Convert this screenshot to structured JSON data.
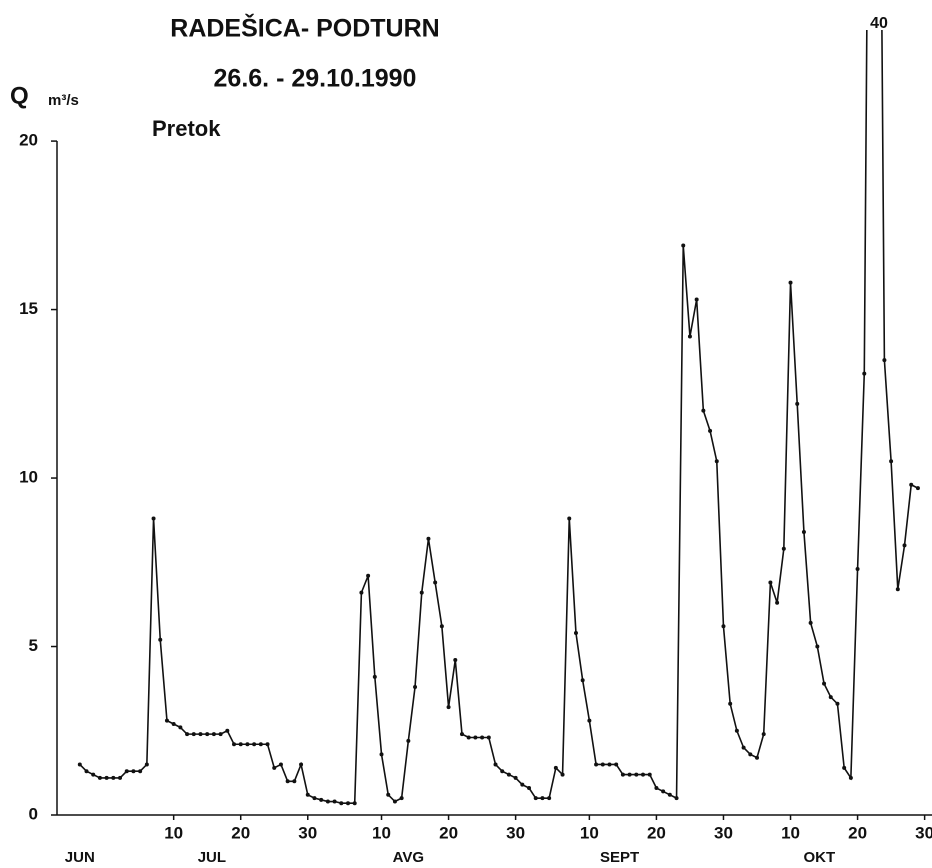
{
  "chart_data": {
    "type": "line",
    "title": "RADEŠICA- PODTURN",
    "subtitle": "26.6. - 29.10.1990",
    "y_label": "Q",
    "y_unit": "m³/s",
    "series_label": "Pretok",
    "annotation": "40",
    "x": [
      -5,
      -4,
      -3,
      -2,
      -1,
      0,
      1,
      2,
      3,
      4,
      5,
      6,
      7,
      8,
      9,
      10,
      11,
      12,
      13,
      14,
      15,
      16,
      17,
      18,
      19,
      20,
      21,
      22,
      23,
      24,
      25,
      26,
      27,
      28,
      29,
      30,
      31,
      32,
      33,
      34,
      35,
      36,
      37,
      38,
      39,
      40,
      41,
      42,
      43,
      44,
      45,
      46,
      47,
      48,
      49,
      50,
      51,
      52,
      53,
      54,
      55,
      56,
      57,
      58,
      59,
      60,
      61,
      62,
      63,
      64,
      65,
      66,
      67,
      68,
      69,
      70,
      71,
      72,
      73,
      74,
      75,
      76,
      77,
      78,
      79,
      80,
      81,
      82,
      83,
      84,
      85,
      86,
      87,
      88,
      89,
      90,
      91,
      92,
      93,
      94,
      95,
      96,
      97,
      98,
      99,
      100,
      101,
      102,
      103,
      104,
      105,
      106,
      107,
      108,
      109,
      110,
      111,
      112,
      113,
      114,
      115,
      116,
      117,
      118,
      119,
      120
    ],
    "series": [
      {
        "name": "Pretok",
        "color": "#111111",
        "values": [
          1.5,
          1.3,
          1.2,
          1.1,
          1.1,
          1.1,
          1.1,
          1.3,
          1.3,
          1.3,
          1.5,
          8.8,
          5.2,
          2.8,
          2.7,
          2.6,
          2.4,
          2.4,
          2.4,
          2.4,
          2.4,
          2.4,
          2.5,
          2.1,
          2.1,
          2.1,
          2.1,
          2.1,
          2.1,
          1.4,
          1.5,
          1.0,
          1.0,
          1.5,
          0.6,
          0.5,
          0.45,
          0.4,
          0.4,
          0.35,
          0.35,
          0.35,
          6.6,
          7.1,
          4.1,
          1.8,
          0.6,
          0.4,
          0.5,
          2.2,
          3.8,
          6.6,
          8.2,
          6.9,
          5.6,
          3.2,
          4.6,
          2.4,
          2.3,
          2.3,
          2.3,
          2.3,
          1.5,
          1.3,
          1.2,
          1.1,
          0.9,
          0.8,
          0.5,
          0.5,
          0.5,
          1.4,
          1.2,
          8.8,
          5.4,
          4.0,
          2.8,
          1.5,
          1.5,
          1.5,
          1.5,
          1.2,
          1.2,
          1.2,
          1.2,
          1.2,
          0.8,
          0.7,
          0.6,
          0.5,
          16.9,
          14.2,
          15.3,
          12.0,
          11.4,
          10.5,
          5.6,
          3.3,
          2.5,
          2.0,
          1.8,
          1.7,
          2.4,
          6.9,
          6.3,
          7.9,
          15.8,
          12.2,
          8.4,
          5.7,
          5.0,
          3.9,
          3.5,
          3.3,
          1.4,
          1.1,
          7.3,
          13.1,
          40,
          40,
          13.5,
          10.5,
          6.7,
          8.0,
          9.8,
          9.7
        ]
      }
    ],
    "xlim": [
      -8.4,
      122.1
    ],
    "xticks": [
      {
        "value": 9,
        "label": "10"
      },
      {
        "value": 19,
        "label": "20"
      },
      {
        "value": 29,
        "label": "30"
      },
      {
        "value": 40,
        "label": "10"
      },
      {
        "value": 50,
        "label": "20"
      },
      {
        "value": 60,
        "label": "30"
      },
      {
        "value": 71,
        "label": "10"
      },
      {
        "value": 81,
        "label": "20"
      },
      {
        "value": 91,
        "label": "30"
      },
      {
        "value": 101,
        "label": "10"
      },
      {
        "value": 111,
        "label": "20"
      },
      {
        "value": 121,
        "label": "30"
      }
    ],
    "months": [
      {
        "value": -5,
        "label": "JUN"
      },
      {
        "value": 14.7,
        "label": "JUL"
      },
      {
        "value": 44,
        "label": "AVG"
      },
      {
        "value": 75.5,
        "label": "SEPT"
      },
      {
        "value": 105.3,
        "label": "OKT"
      }
    ],
    "ylim": [
      0,
      23
    ],
    "yticks": [
      0,
      5,
      10,
      15,
      20
    ],
    "grid": false
  }
}
